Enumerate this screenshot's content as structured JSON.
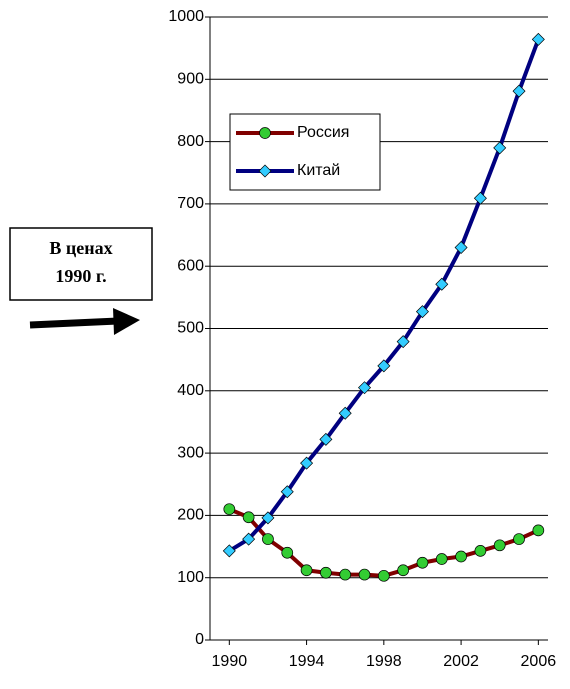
{
  "chart_data": {
    "type": "line",
    "x": [
      1990,
      1991,
      1992,
      1993,
      1994,
      1995,
      1996,
      1997,
      1998,
      1999,
      2000,
      2001,
      2002,
      2003,
      2004,
      2005,
      2006
    ],
    "series": [
      {
        "name": "Россия",
        "color": "#800000",
        "marker_color": "#33cc33",
        "marker": "circle",
        "values": [
          210,
          197,
          162,
          140,
          112,
          108,
          105,
          105,
          103,
          112,
          124,
          130,
          134,
          143,
          152,
          162,
          176
        ]
      },
      {
        "name": "Китай",
        "color": "#000080",
        "marker_color": "#33ccff",
        "marker": "diamond",
        "values": [
          143,
          162,
          196,
          238,
          284,
          322,
          364,
          405,
          440,
          479,
          527,
          571,
          630,
          709,
          790,
          881,
          964
        ]
      }
    ],
    "xlim": [
      1989,
      2006.5
    ],
    "xticks": [
      1990,
      1994,
      1998,
      2002,
      2006
    ],
    "ylim": [
      0,
      1000
    ],
    "yticks": [
      0,
      100,
      200,
      300,
      400,
      500,
      600,
      700,
      800,
      900,
      1000
    ],
    "grid": true,
    "annotation": {
      "lines": [
        "В ценах",
        "1990 г."
      ]
    }
  }
}
